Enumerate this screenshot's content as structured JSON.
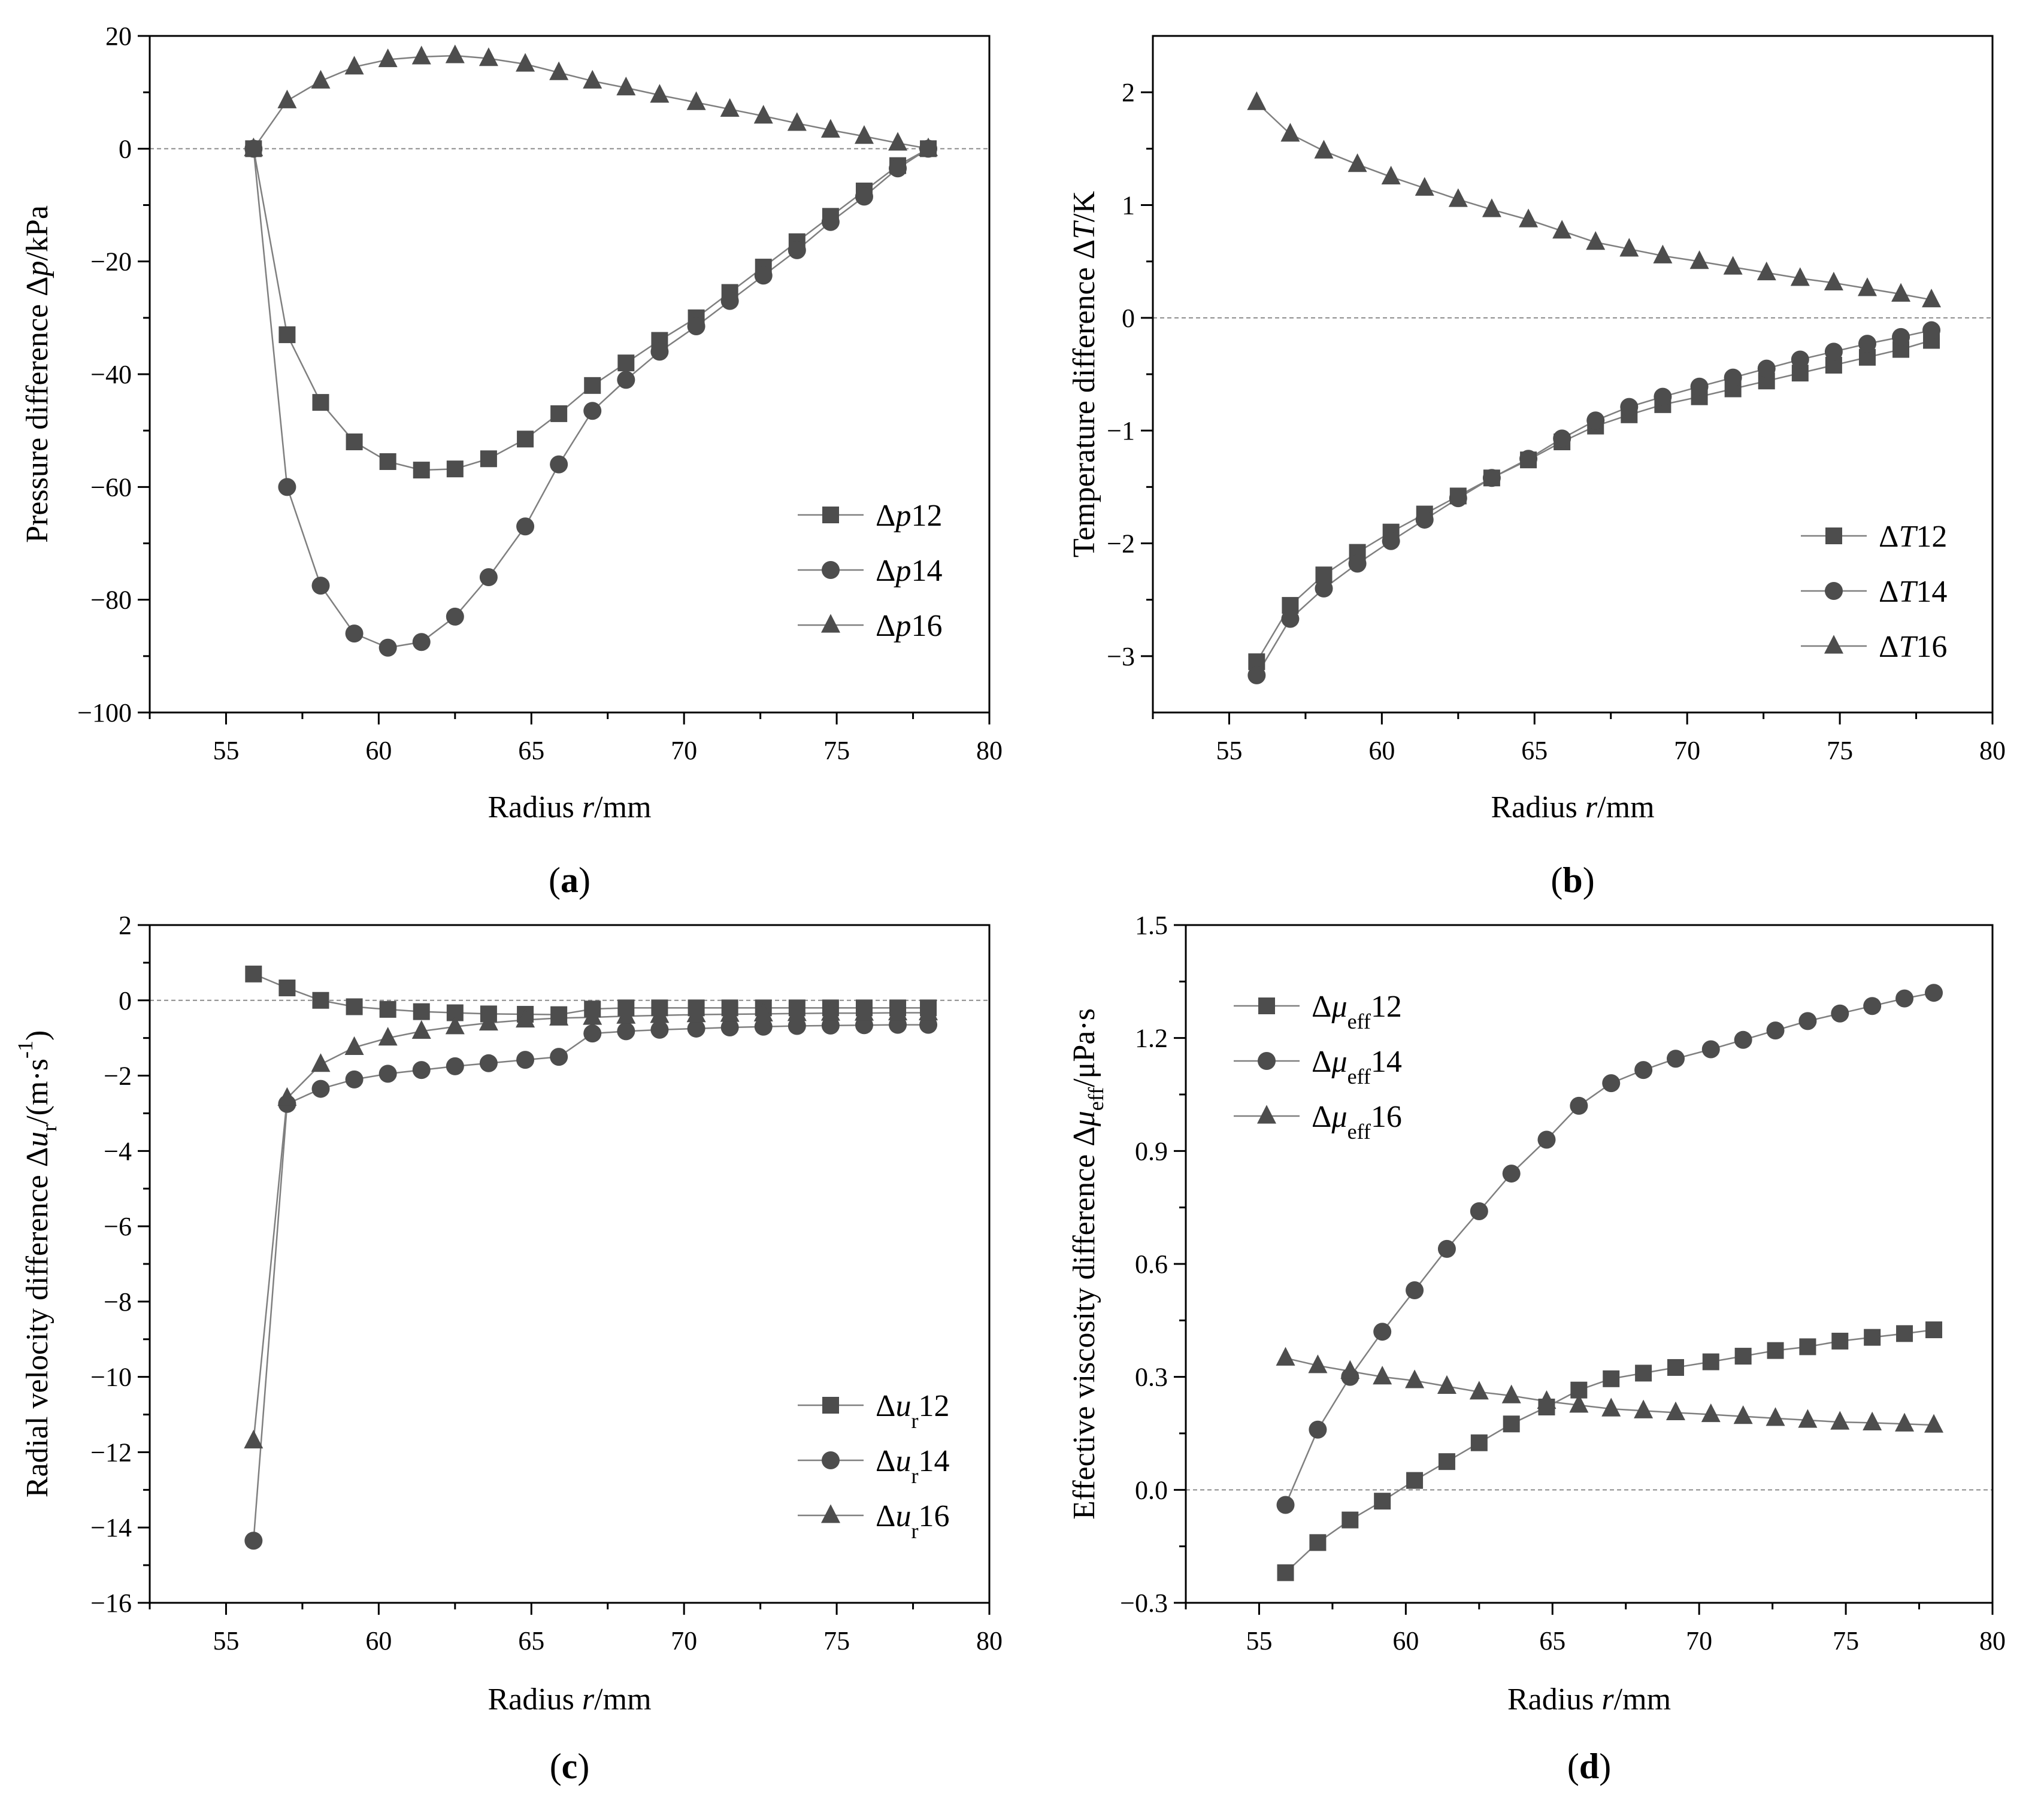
{
  "colors": {
    "axis": "#000000",
    "series_line": "#7f7f7f",
    "marker": "#4d4d4d",
    "zero_line": "#8c8c8c",
    "background": "#ffffff"
  },
  "chart_data": [
    {
      "id": "a",
      "panel_label": "a",
      "type": "line",
      "xlabel": {
        "prefix": "Radius ",
        "var": "r",
        "suffix": "/mm"
      },
      "ylabel": {
        "prefix": "Pressure difference Δ",
        "var": "p",
        "suffix": "/kPa"
      },
      "xlim": [
        52.5,
        80
      ],
      "ylim": [
        -100,
        20
      ],
      "xticks": [
        55,
        60,
        65,
        70,
        75,
        80
      ],
      "yticks": [
        -100,
        -80,
        -60,
        -40,
        -20,
        0,
        20
      ],
      "zero_line": true,
      "legend_position": "bottom-right",
      "x": [
        55.9,
        57.0,
        58.1,
        59.2,
        60.3,
        61.4,
        62.5,
        63.6,
        64.8,
        65.9,
        67.0,
        68.1,
        69.2,
        70.4,
        71.5,
        72.6,
        73.7,
        74.8,
        75.9,
        77.0,
        78.0
      ],
      "series": [
        {
          "name": "Δp12",
          "label": {
            "prefix": "Δ",
            "var": "p",
            "sub": "",
            "num": "12"
          },
          "marker": "square",
          "values": [
            0,
            -33,
            -45,
            -52,
            -55.5,
            -57,
            -56.8,
            -55,
            -51.5,
            -47,
            -42,
            -38,
            -34,
            -30,
            -25.5,
            -21,
            -16.5,
            -12,
            -7.5,
            -3,
            0
          ]
        },
        {
          "name": "Δp14",
          "label": {
            "prefix": "Δ",
            "var": "p",
            "sub": "",
            "num": "14"
          },
          "marker": "circle",
          "values": [
            0,
            -60,
            -77.5,
            -86,
            -88.5,
            -87.5,
            -83,
            -76,
            -67,
            -56,
            -46.5,
            -41,
            -36,
            -31.5,
            -27,
            -22.5,
            -18,
            -13,
            -8.5,
            -3.5,
            0
          ]
        },
        {
          "name": "Δp16",
          "label": {
            "prefix": "Δ",
            "var": "p",
            "sub": "",
            "num": "16"
          },
          "marker": "triangle",
          "values": [
            0,
            8.5,
            12,
            14.5,
            15.8,
            16.3,
            16.5,
            16,
            15,
            13.5,
            12,
            10.8,
            9.5,
            8.2,
            7,
            5.8,
            4.5,
            3.3,
            2.2,
            1,
            0
          ]
        }
      ]
    },
    {
      "id": "b",
      "panel_label": "b",
      "type": "line",
      "xlabel": {
        "prefix": "Radius ",
        "var": "r",
        "suffix": "/mm"
      },
      "ylabel": {
        "prefix": "Temperature difference Δ",
        "var": "T",
        "suffix": "/K"
      },
      "xlim": [
        52.5,
        80
      ],
      "ylim": [
        -3.5,
        2.5
      ],
      "xticks": [
        55,
        60,
        65,
        70,
        75,
        80
      ],
      "yticks": [
        -3,
        -2,
        -1,
        0,
        1,
        2
      ],
      "zero_line": true,
      "legend_position": "bottom-right",
      "x": [
        55.9,
        57.0,
        58.1,
        59.2,
        60.3,
        61.4,
        62.5,
        63.6,
        64.8,
        65.9,
        67.0,
        68.1,
        69.2,
        70.4,
        71.5,
        72.6,
        73.7,
        74.8,
        75.9,
        77.0,
        78.0
      ],
      "series": [
        {
          "name": "ΔT12",
          "label": {
            "prefix": "Δ",
            "var": "T",
            "sub": "",
            "num": "12"
          },
          "marker": "square",
          "values": [
            -3.05,
            -2.55,
            -2.28,
            -2.08,
            -1.9,
            -1.74,
            -1.58,
            -1.42,
            -1.26,
            -1.1,
            -0.96,
            -0.86,
            -0.77,
            -0.7,
            -0.63,
            -0.56,
            -0.49,
            -0.42,
            -0.35,
            -0.28,
            -0.2
          ]
        },
        {
          "name": "ΔT14",
          "label": {
            "prefix": "Δ",
            "var": "T",
            "sub": "",
            "num": "14"
          },
          "marker": "circle",
          "values": [
            -3.17,
            -2.67,
            -2.4,
            -2.18,
            -1.98,
            -1.79,
            -1.6,
            -1.42,
            -1.25,
            -1.07,
            -0.91,
            -0.79,
            -0.7,
            -0.61,
            -0.53,
            -0.45,
            -0.37,
            -0.3,
            -0.23,
            -0.17,
            -0.11
          ]
        },
        {
          "name": "ΔT16",
          "label": {
            "prefix": "Δ",
            "var": "T",
            "sub": "",
            "num": "16"
          },
          "marker": "triangle",
          "values": [
            1.91,
            1.63,
            1.48,
            1.36,
            1.25,
            1.15,
            1.05,
            0.96,
            0.87,
            0.77,
            0.67,
            0.61,
            0.55,
            0.5,
            0.45,
            0.4,
            0.35,
            0.31,
            0.26,
            0.21,
            0.16
          ]
        }
      ]
    },
    {
      "id": "c",
      "panel_label": "c",
      "type": "line",
      "xlabel": {
        "prefix": "Radius ",
        "var": "r",
        "suffix": "/mm"
      },
      "ylabel": {
        "prefix": "Radial velocity difference Δ",
        "var": "u",
        "sub": "r",
        "suffix": "/(m·s",
        "sup": "-1",
        "end": ")"
      },
      "xlim": [
        52.5,
        80
      ],
      "ylim": [
        -16,
        2
      ],
      "xticks": [
        55,
        60,
        65,
        70,
        75,
        80
      ],
      "yticks": [
        -16,
        -14,
        -12,
        -10,
        -8,
        -6,
        -4,
        -2,
        0,
        2
      ],
      "zero_line": true,
      "legend_position": "bottom-right",
      "x": [
        55.9,
        57.0,
        58.1,
        59.2,
        60.3,
        61.4,
        62.5,
        63.6,
        64.8,
        65.9,
        67.0,
        68.1,
        69.2,
        70.4,
        71.5,
        72.6,
        73.7,
        74.8,
        75.9,
        77.0,
        78.0
      ],
      "series": [
        {
          "name": "Δur12",
          "label": {
            "prefix": "Δ",
            "var": "u",
            "sub": "r",
            "num": "12"
          },
          "marker": "square",
          "values": [
            0.7,
            0.33,
            0.0,
            -0.17,
            -0.24,
            -0.3,
            -0.33,
            -0.36,
            -0.37,
            -0.38,
            -0.23,
            -0.2,
            -0.2,
            -0.2,
            -0.2,
            -0.2,
            -0.2,
            -0.2,
            -0.2,
            -0.2,
            -0.2
          ]
        },
        {
          "name": "Δur14",
          "label": {
            "prefix": "Δ",
            "var": "u",
            "sub": "r",
            "num": "14"
          },
          "marker": "circle",
          "values": [
            -14.35,
            -2.75,
            -2.35,
            -2.1,
            -1.95,
            -1.85,
            -1.75,
            -1.67,
            -1.58,
            -1.5,
            -0.88,
            -0.82,
            -0.78,
            -0.75,
            -0.72,
            -0.7,
            -0.68,
            -0.67,
            -0.66,
            -0.65,
            -0.65
          ]
        },
        {
          "name": "Δur16",
          "label": {
            "prefix": "Δ",
            "var": "u",
            "sub": "r",
            "num": "16"
          },
          "marker": "triangle",
          "values": [
            -11.7,
            -2.6,
            -1.7,
            -1.25,
            -1.0,
            -0.82,
            -0.7,
            -0.6,
            -0.52,
            -0.47,
            -0.45,
            -0.42,
            -0.4,
            -0.38,
            -0.37,
            -0.36,
            -0.35,
            -0.34,
            -0.34,
            -0.33,
            -0.33
          ]
        }
      ]
    },
    {
      "id": "d",
      "panel_label": "d",
      "type": "line",
      "xlabel": {
        "prefix": "Radius ",
        "var": "r",
        "suffix": "/mm"
      },
      "ylabel": {
        "prefix": "Effective viscosity difference Δ",
        "var": "μ",
        "sub": "eff",
        "suffix": "/μPa·s"
      },
      "xlim": [
        52.5,
        80
      ],
      "ylim": [
        -0.3,
        1.5
      ],
      "xticks": [
        55,
        60,
        65,
        70,
        75,
        80
      ],
      "yticks": [
        -0.3,
        0.0,
        0.3,
        0.6,
        0.9,
        1.2,
        1.5
      ],
      "ytick_labels": [
        "-0.3",
        "0.0",
        "0.3",
        "0.6",
        "0.9",
        "1.2",
        "1.5"
      ],
      "zero_line": true,
      "legend_position": "top-left",
      "x": [
        55.9,
        57.0,
        58.1,
        59.2,
        60.3,
        61.4,
        62.5,
        63.6,
        64.8,
        65.9,
        67.0,
        68.1,
        69.2,
        70.4,
        71.5,
        72.6,
        73.7,
        74.8,
        75.9,
        77.0,
        78.0
      ],
      "series": [
        {
          "name": "Δμeff12",
          "label": {
            "prefix": "Δ",
            "var": "μ",
            "sub": "eff",
            "num": "12"
          },
          "marker": "square",
          "values": [
            -0.22,
            -0.14,
            -0.08,
            -0.03,
            0.025,
            0.075,
            0.125,
            0.175,
            0.22,
            0.265,
            0.295,
            0.31,
            0.325,
            0.34,
            0.355,
            0.37,
            0.38,
            0.395,
            0.405,
            0.415,
            0.425
          ]
        },
        {
          "name": "Δμeff14",
          "label": {
            "prefix": "Δ",
            "var": "μ",
            "sub": "eff",
            "num": "14"
          },
          "marker": "circle",
          "values": [
            -0.04,
            0.16,
            0.3,
            0.42,
            0.53,
            0.64,
            0.74,
            0.84,
            0.93,
            1.02,
            1.08,
            1.115,
            1.145,
            1.17,
            1.195,
            1.22,
            1.245,
            1.265,
            1.285,
            1.305,
            1.32
          ]
        },
        {
          "name": "Δμeff16",
          "label": {
            "prefix": "Δ",
            "var": "μ",
            "sub": "eff",
            "num": "16"
          },
          "marker": "triangle",
          "values": [
            0.35,
            0.33,
            0.315,
            0.3,
            0.29,
            0.275,
            0.26,
            0.25,
            0.235,
            0.225,
            0.215,
            0.21,
            0.205,
            0.2,
            0.195,
            0.19,
            0.185,
            0.18,
            0.178,
            0.175,
            0.172
          ]
        }
      ]
    }
  ]
}
